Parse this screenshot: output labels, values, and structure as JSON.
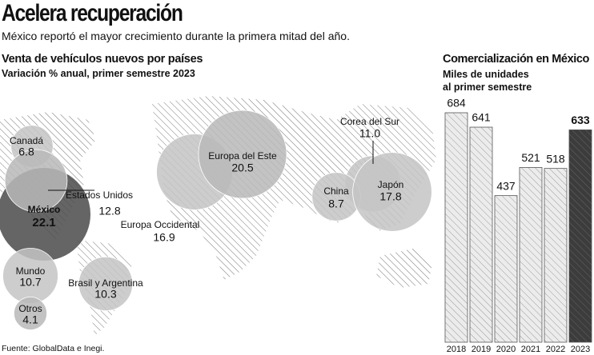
{
  "title": "Acelera recuperación",
  "subtitle": "México reportó el mayor crecimiento durante la primera mitad del año.",
  "source": "Fuente: GlobalData e Inegi.",
  "chart_data": [
    {
      "type": "bubble",
      "title": "Venta de vehículos nuevos por países",
      "subtitle": "Variación % anual, primer semestre 2023",
      "categories": [
        "Canadá",
        "México",
        "Estados Unidos",
        "Europa Occidental",
        "Europa del Este",
        "Corea del Sur",
        "China",
        "Japón",
        "Brasil y Argentina",
        "Mundo",
        "Otros"
      ],
      "values": [
        6.8,
        22.1,
        12.8,
        16.9,
        20.5,
        11.0,
        8.7,
        17.8,
        10.3,
        10.7,
        4.1
      ],
      "value_labels": [
        "6.8",
        "22.1",
        "12.8",
        "16.9",
        "20.5",
        "11.0",
        "8.7",
        "17.8",
        "10.3",
        "10.7",
        "4.1"
      ],
      "colors": [
        "#c4c4c4",
        "#4a4a4a",
        "#b8b8b8",
        "#c4c4c4",
        "#b8b8b8",
        "#c4c4c4",
        "#c4c4c4",
        "#c4c4c4",
        "#c4c4c4",
        "#c4c4c4",
        "#b8b8b8"
      ]
    },
    {
      "type": "bar",
      "title": "Comercialización en México",
      "subtitle": "Miles de unidades al primer semestre",
      "categories": [
        "2018",
        "2019",
        "2020",
        "2021",
        "2022",
        "2023"
      ],
      "values": [
        684,
        641,
        437,
        521,
        518,
        633
      ],
      "colors": [
        "#ececec",
        "#ececec",
        "#ececec",
        "#ececec",
        "#ececec",
        "#3c3c3c"
      ]
    }
  ]
}
